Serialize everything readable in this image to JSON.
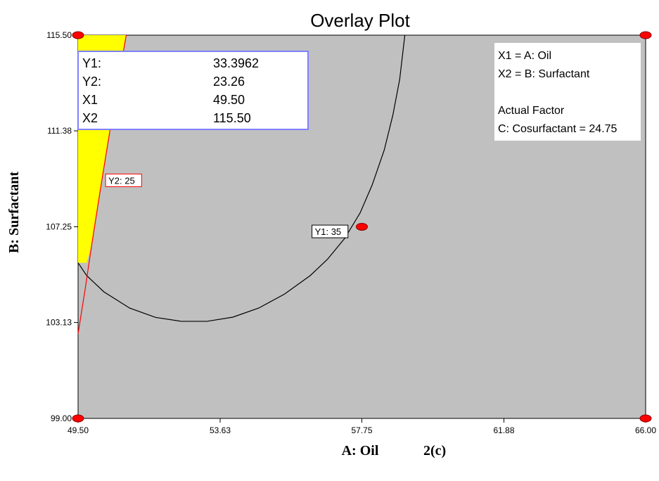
{
  "chart_data": {
    "type": "contour",
    "title": "Overlay Plot",
    "xlabel": "A: Oil",
    "ylabel": "B: Surfactant",
    "xlim": [
      49.5,
      66.0
    ],
    "ylim": [
      99.0,
      115.5
    ],
    "x_ticks": [
      "49.50",
      "53.63",
      "57.75",
      "61.88",
      "66.00"
    ],
    "y_ticks": [
      "99.00",
      "103.13",
      "107.25",
      "111.38",
      "115.50"
    ],
    "grid": false,
    "colors": {
      "background": "#c0c0c0",
      "feasible_region": "#ffff00",
      "y1_contour": "#000000",
      "y2_contour": "#ff0000",
      "design_points": "#ff0000",
      "flag_border": "#8080ff"
    },
    "contours": [
      {
        "label": "Y1: 35",
        "color": "#000000",
        "points": [
          [
            49.5,
            105.7
          ],
          [
            49.75,
            105.15
          ],
          [
            50.25,
            104.45
          ],
          [
            51.0,
            103.75
          ],
          [
            51.75,
            103.35
          ],
          [
            52.5,
            103.18
          ],
          [
            53.25,
            103.18
          ],
          [
            54.0,
            103.36
          ],
          [
            54.75,
            103.75
          ],
          [
            55.5,
            104.35
          ],
          [
            56.25,
            105.15
          ],
          [
            56.75,
            105.85
          ],
          [
            57.25,
            106.75
          ],
          [
            57.7,
            107.85
          ],
          [
            58.05,
            109.05
          ],
          [
            58.4,
            110.55
          ],
          [
            58.65,
            112.05
          ],
          [
            58.85,
            113.6
          ],
          [
            59.0,
            115.5
          ]
        ],
        "label_position": [
          56.3,
          107.05
        ]
      },
      {
        "label": "Y2: 25",
        "color": "#ff0000",
        "points": [
          [
            49.5,
            102.65
          ],
          [
            49.7,
            104.5
          ],
          [
            49.9,
            106.5
          ],
          [
            50.1,
            108.4
          ],
          [
            50.3,
            110.25
          ],
          [
            50.5,
            112.05
          ],
          [
            50.7,
            113.8
          ],
          [
            50.9,
            115.5
          ]
        ],
        "label_position": [
          50.3,
          109.25
        ]
      }
    ],
    "feasible_region": [
      [
        49.5,
        105.7
      ],
      [
        49.75,
        105.7
      ],
      [
        49.9,
        106.5
      ],
      [
        50.1,
        108.4
      ],
      [
        50.3,
        110.25
      ],
      [
        50.5,
        112.05
      ],
      [
        50.7,
        113.8
      ],
      [
        50.9,
        115.5
      ],
      [
        49.5,
        115.5
      ]
    ],
    "design_points": [
      [
        49.5,
        115.5
      ],
      [
        66.0,
        115.5
      ],
      [
        57.75,
        107.25
      ],
      [
        49.5,
        99.0
      ],
      [
        66.0,
        99.0
      ]
    ],
    "flag": {
      "point": [
        49.5,
        115.5
      ],
      "rows": [
        {
          "label": "Y1:",
          "value": "33.3962"
        },
        {
          "label": "Y2:",
          "value": "23.26"
        },
        {
          "label": "X1",
          "value": "49.50"
        },
        {
          "label": "X2",
          "value": "115.50"
        }
      ]
    },
    "legend": {
      "placement": "top-right",
      "lines": [
        "X1 = A: Oil",
        "X2 = B: Surfactant",
        "",
        "Actual Factor",
        "C: Cosurfactant = 24.75"
      ]
    },
    "caption": "2(c)"
  }
}
